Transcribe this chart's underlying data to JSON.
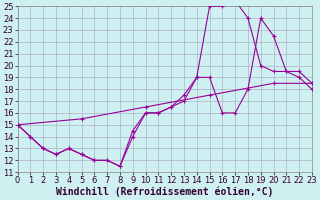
{
  "xlabel": "Windchill (Refroidissement éolien,°C)",
  "xlim": [
    0,
    23
  ],
  "ylim": [
    11,
    25
  ],
  "xticks": [
    0,
    1,
    2,
    3,
    4,
    5,
    6,
    7,
    8,
    9,
    10,
    11,
    12,
    13,
    14,
    15,
    16,
    17,
    18,
    19,
    20,
    21,
    22,
    23
  ],
  "yticks": [
    11,
    12,
    13,
    14,
    15,
    16,
    17,
    18,
    19,
    20,
    21,
    22,
    23,
    24,
    25
  ],
  "bg_color": "#cff0f0",
  "grid_color": "#b0b0cc",
  "line_color": "#990099",
  "line1_x": [
    0,
    1,
    2,
    3,
    4,
    5,
    6,
    7,
    8,
    9,
    10,
    11,
    12,
    13,
    14,
    15,
    16,
    17,
    18,
    19,
    20,
    21,
    22,
    23
  ],
  "line1_y": [
    15,
    14,
    13,
    12.5,
    13,
    12.5,
    12,
    12,
    11.5,
    14,
    16,
    16,
    16.5,
    17,
    19,
    25,
    25,
    25.5,
    24,
    20,
    19.5,
    19.5,
    19.5,
    18.5
  ],
  "line2_x": [
    0,
    1,
    2,
    3,
    4,
    5,
    6,
    7,
    8,
    9,
    10,
    11,
    12,
    13,
    14,
    15,
    16,
    17,
    18,
    19,
    20,
    21,
    22,
    23
  ],
  "line2_y": [
    15,
    14,
    13,
    12.5,
    13,
    12.5,
    12,
    12,
    11.5,
    14.5,
    16,
    16,
    16.5,
    17.5,
    19,
    19,
    16,
    16,
    18,
    24,
    22.5,
    19.5,
    19,
    18
  ],
  "line3_x": [
    0,
    5,
    10,
    15,
    20,
    23
  ],
  "line3_y": [
    15,
    15.5,
    16.5,
    17.5,
    18.5,
    18.5
  ],
  "tick_fontsize": 6,
  "xlabel_fontsize": 7,
  "marker_size": 2.5,
  "lw": 0.8
}
